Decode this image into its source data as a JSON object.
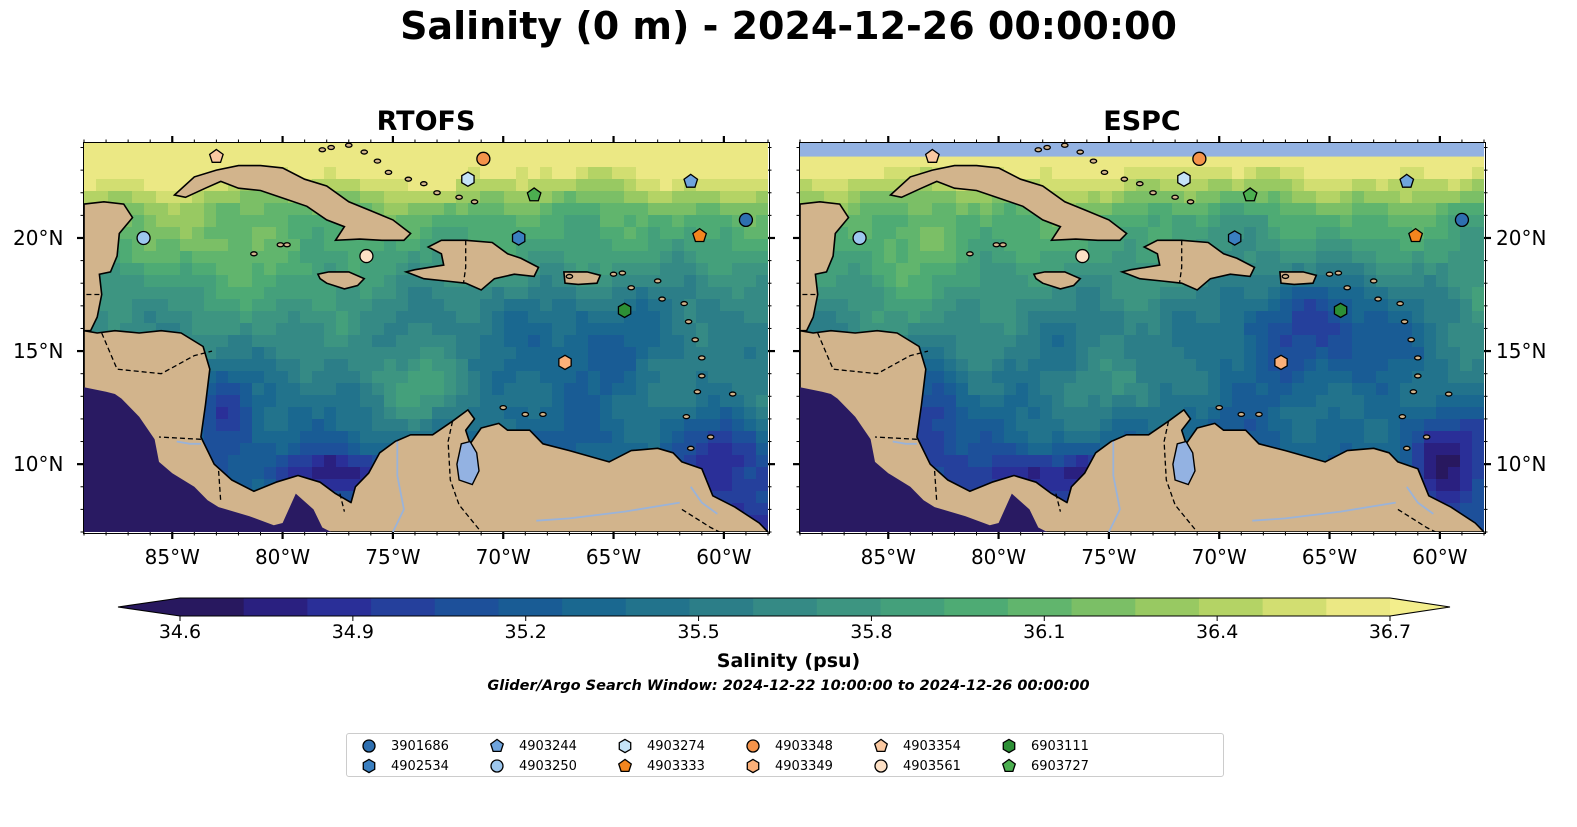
{
  "title": "Salinity (0 m) - 2024-12-26 00:00:00",
  "panels": [
    {
      "title": "RTOFS",
      "model": "rtofs"
    },
    {
      "title": "ESPC",
      "model": "espc"
    }
  ],
  "map_extent": {
    "lon_min": -89.0,
    "lon_max": -58.0,
    "lat_min": 7.0,
    "lat_max": 24.2
  },
  "lon_ticks": [
    {
      "value": -85,
      "label": "85°W"
    },
    {
      "value": -80,
      "label": "80°W"
    },
    {
      "value": -75,
      "label": "75°W"
    },
    {
      "value": -70,
      "label": "70°W"
    },
    {
      "value": -65,
      "label": "65°W"
    },
    {
      "value": -60,
      "label": "60°W"
    }
  ],
  "lat_ticks": [
    {
      "value": 20,
      "label": "20°N"
    },
    {
      "value": 15,
      "label": "15°N"
    },
    {
      "value": 10,
      "label": "10°N"
    }
  ],
  "colorbar": {
    "label": "Salinity (psu)",
    "vmin": 34.6,
    "vmax": 36.7,
    "ticks": [
      {
        "value": 34.6,
        "label": "34.6"
      },
      {
        "value": 34.9,
        "label": "34.9"
      },
      {
        "value": 35.2,
        "label": "35.2"
      },
      {
        "value": 35.5,
        "label": "35.5"
      },
      {
        "value": 35.8,
        "label": "35.8"
      },
      {
        "value": 36.1,
        "label": "36.1"
      },
      {
        "value": 36.4,
        "label": "36.4"
      },
      {
        "value": 36.7,
        "label": "36.7"
      }
    ],
    "colors": [
      "#28185f",
      "#2a2080",
      "#2a2f98",
      "#25409c",
      "#1d509a",
      "#195c95",
      "#1a6890",
      "#22738c",
      "#2c7e88",
      "#358a85",
      "#3d9581",
      "#44a07b",
      "#4eab74",
      "#61b56d",
      "#7bbf66",
      "#98c962",
      "#b4d365",
      "#d2de71",
      "#ebe884"
    ],
    "extend_low_color": "#28185f",
    "extend_high_color": "#f3ee8c"
  },
  "search_window": "Glider/Argo Search Window: 2024-12-22 10:00:00 to 2024-12-26 00:00:00",
  "colors": {
    "land": "#d2b48c",
    "lake": "#93b2e2",
    "pacific": "#291a62",
    "base_sea": "#3f967f",
    "coast": "#000000"
  },
  "floats": [
    {
      "id": "3901686",
      "marker": "circle",
      "color": "#2e6fb0",
      "lon": -59.0,
      "lat": 20.8
    },
    {
      "id": "4902534",
      "marker": "hexagon",
      "color": "#3a7fc0",
      "lon": -69.3,
      "lat": 20.0
    },
    {
      "id": "4903244",
      "marker": "pentagon",
      "color": "#6fa4dd",
      "lon": -61.5,
      "lat": 22.5
    },
    {
      "id": "4903250",
      "marker": "circle",
      "color": "#9dc7ee",
      "lon": -86.3,
      "lat": 20.0
    },
    {
      "id": "4903274",
      "marker": "hexagon",
      "color": "#c5e3f7",
      "lon": -71.6,
      "lat": 22.6
    },
    {
      "id": "4903333",
      "marker": "pentagon",
      "color": "#f3851e",
      "lon": -61.1,
      "lat": 20.1
    },
    {
      "id": "4903348",
      "marker": "circle",
      "color": "#f4934a",
      "lon": -70.9,
      "lat": 23.5
    },
    {
      "id": "4903349",
      "marker": "hexagon",
      "color": "#fbb079",
      "lon": -67.2,
      "lat": 14.5
    },
    {
      "id": "4903354",
      "marker": "pentagon",
      "color": "#fbc9a1",
      "lon": -83.0,
      "lat": 23.6
    },
    {
      "id": "4903561",
      "marker": "circle",
      "color": "#fde0c5",
      "lon": -76.2,
      "lat": 19.2
    },
    {
      "id": "6903111",
      "marker": "hexagon",
      "color": "#2c8f35",
      "lon": -64.5,
      "lat": 16.8
    },
    {
      "id": "6903727",
      "marker": "pentagon",
      "color": "#4caf50",
      "lon": -68.6,
      "lat": 21.9
    }
  ]
}
